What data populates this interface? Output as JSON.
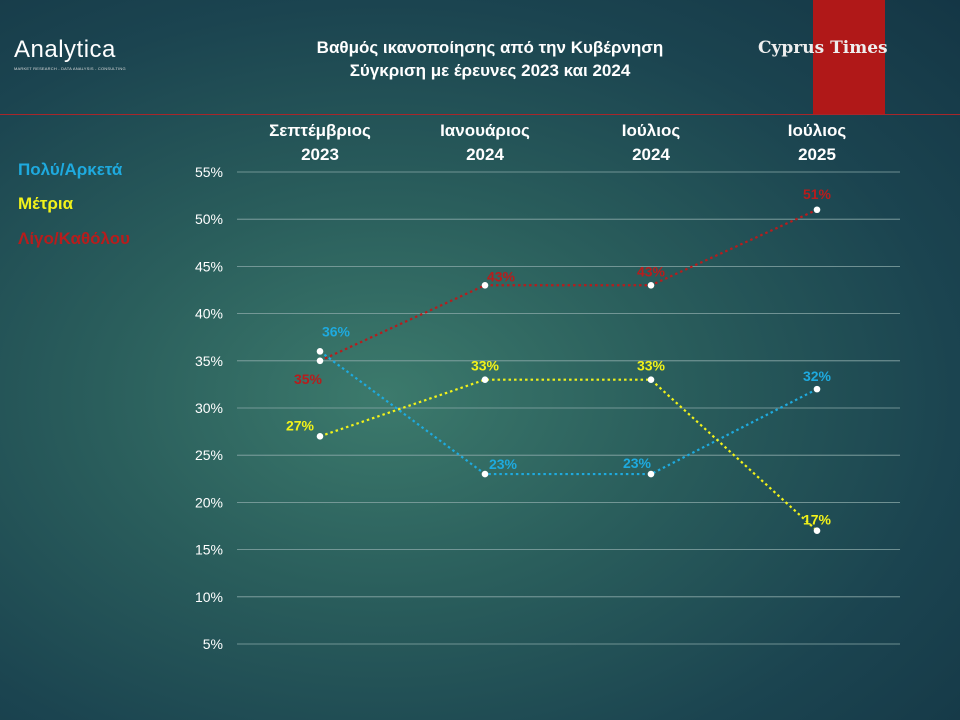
{
  "logo": {
    "name": "Analytica",
    "tagline": "MARKET RESEARCH - DATA ANALYSIS - CONSULTING"
  },
  "publisher": {
    "name": "Cyprus Times"
  },
  "colors": {
    "band": "#b01818",
    "blue": "#1eaadf",
    "yellow": "#f2f21a",
    "red": "#b81c1c"
  },
  "chart_data": {
    "type": "line",
    "title": "Βαθμός ικανοποίησης από την Κυβέρνηση",
    "subtitle": "Σύγκριση με έρευνες 2023 και 2024",
    "categories": [
      [
        "Σεπτέμβριος",
        "2023"
      ],
      [
        "Ιανουάριος",
        "2024"
      ],
      [
        "Ιούλιος",
        "2024"
      ],
      [
        "Ιούλιος",
        "2025"
      ]
    ],
    "ylim": [
      5,
      55
    ],
    "yticks": [
      "55%",
      "50%",
      "45%",
      "40%",
      "35%",
      "30%",
      "25%",
      "20%",
      "15%",
      "10%",
      "5%"
    ],
    "grid": true,
    "legend_position": "left",
    "series": [
      {
        "name": "Πολύ/Αρκετά",
        "color": "#1eaadf",
        "values": [
          36,
          23,
          23,
          32
        ],
        "labels": [
          "36%",
          "23%",
          "23%",
          "32%"
        ]
      },
      {
        "name": "Μέτρια",
        "color": "#f2f21a",
        "values": [
          27,
          33,
          33,
          17
        ],
        "labels": [
          "27%",
          "33%",
          "33%",
          "17%"
        ]
      },
      {
        "name": "Λίγο/Καθόλου",
        "color": "#b81c1c",
        "values": [
          35,
          43,
          43,
          51
        ],
        "labels": [
          "35%",
          "43%",
          "43%",
          "51%"
        ]
      }
    ]
  }
}
